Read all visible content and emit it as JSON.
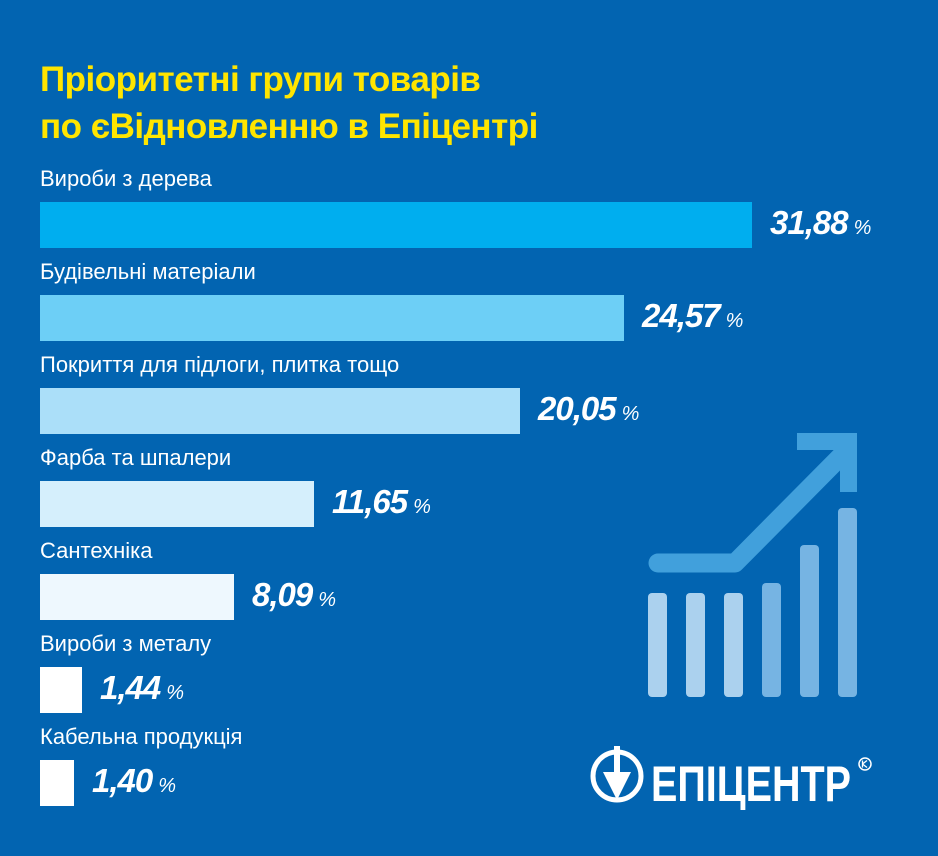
{
  "chart_data": {
    "type": "bar",
    "orientation": "horizontal",
    "title": "Пріоритетні групи товарів по єВідновленню в Епіцентрі",
    "title_lines": [
      "Пріоритетні групи товарів",
      "по єВідновленню в Епіцентрі"
    ],
    "categories": [
      "Вироби з дерева",
      "Будівельні матеріали",
      "Покриття для підлоги, плитка тощо",
      "Фарба та шпалери",
      "Сантехніка",
      "Вироби з металу",
      "Кабельна продукція"
    ],
    "values": [
      31.88,
      24.57,
      20.05,
      11.65,
      8.09,
      1.44,
      1.4
    ],
    "value_labels": [
      "31,88",
      "24,57",
      "20,05",
      "11,65",
      "8,09",
      "1,44",
      "1,40"
    ],
    "unit": "%",
    "colors": [
      "#00aeef",
      "#6dcff6",
      "#abdff9",
      "#d5effc",
      "#eef8fe",
      "#ffffff",
      "#ffffff"
    ]
  },
  "logo": {
    "text": "ЕПІЦЕНТР"
  }
}
